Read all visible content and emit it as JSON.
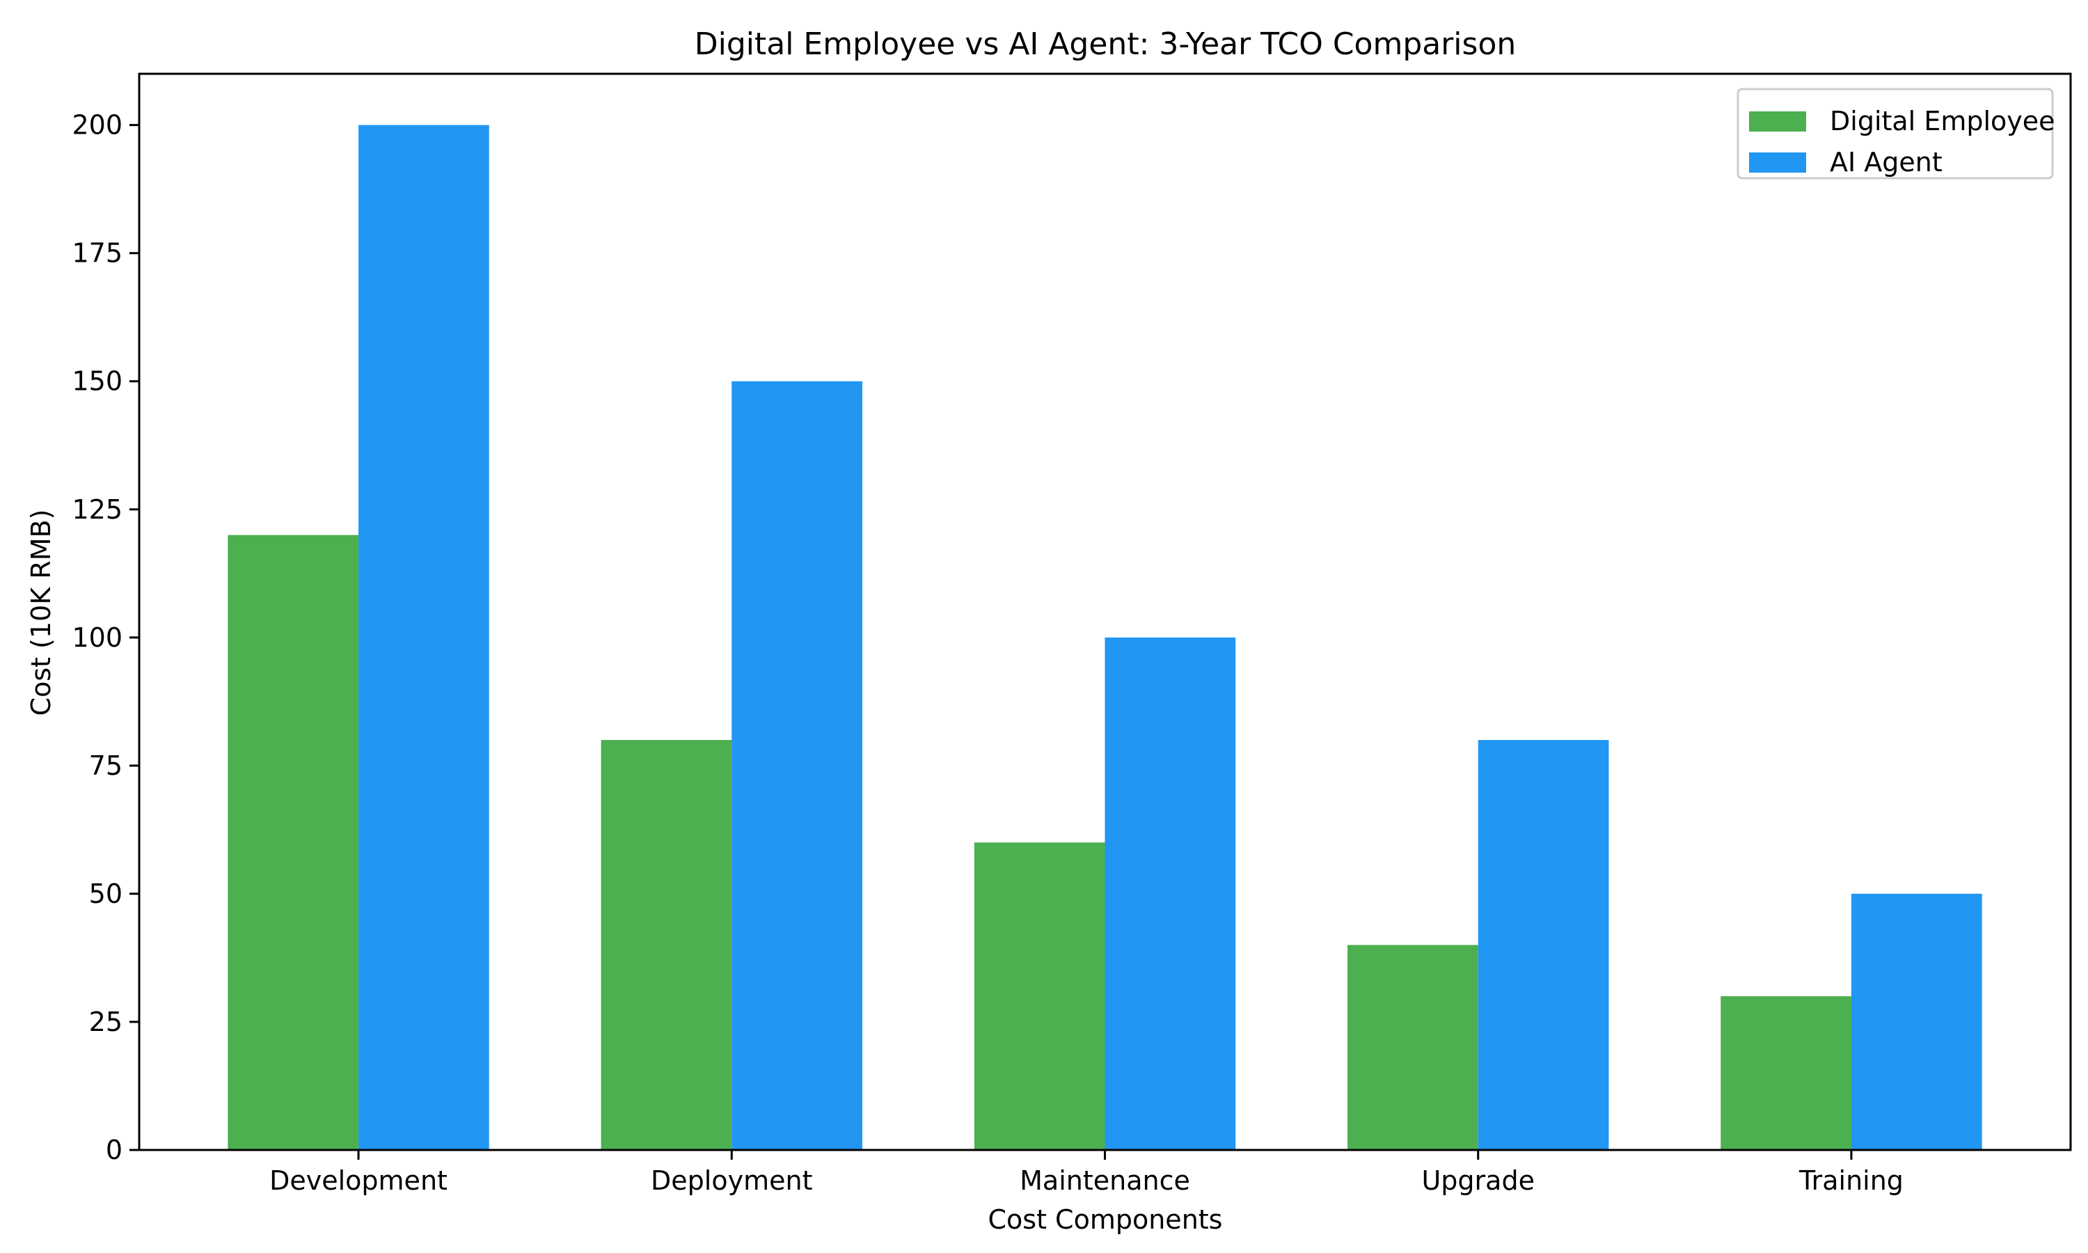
{
  "chart_data": {
    "type": "bar",
    "title": "Digital Employee vs AI Agent: 3-Year TCO Comparison",
    "xlabel": "Cost Components",
    "ylabel": "Cost (10K RMB)",
    "categories": [
      "Development",
      "Deployment",
      "Maintenance",
      "Upgrade",
      "Training"
    ],
    "series": [
      {
        "name": "Digital Employee",
        "color": "#4caf50",
        "values": [
          120,
          80,
          60,
          40,
          30
        ]
      },
      {
        "name": "AI Agent",
        "color": "#2196f3",
        "values": [
          200,
          150,
          100,
          80,
          50
        ]
      }
    ],
    "ylim": [
      0,
      210
    ],
    "yticks": [
      0,
      25,
      50,
      75,
      100,
      125,
      150,
      175,
      200
    ],
    "grid": false,
    "legend_position": "top-right"
  }
}
